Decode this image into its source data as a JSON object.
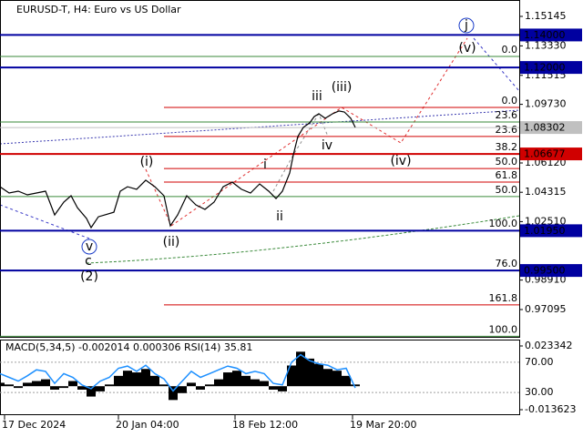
{
  "chart_data": [
    {
      "type": "line",
      "title": "EURUSD-T, H4:  Euro vs US Dollar",
      "x": [
        0,
        10,
        20,
        30,
        40,
        50,
        60,
        70,
        78,
        85,
        95,
        100,
        108,
        115,
        125,
        132,
        140,
        150,
        160,
        170,
        180,
        187,
        195,
        205,
        215,
        225,
        235,
        245,
        255,
        265,
        275,
        285,
        295,
        303,
        310,
        318,
        322,
        327,
        333,
        340,
        345,
        350,
        357,
        365,
        372,
        378,
        385,
        390
      ],
      "series": [
        {
          "color": "#000000",
          "values": [
            1.0466,
            1.0427,
            1.0438,
            1.0416,
            1.0427,
            1.0438,
            1.0292,
            1.0371,
            1.041,
            1.0337,
            1.027,
            1.0214,
            1.0281,
            1.0292,
            1.0309,
            1.0438,
            1.0466,
            1.045,
            1.0506,
            1.0466,
            1.041,
            1.0225,
            1.0292,
            1.041,
            1.0354,
            1.0326,
            1.0371,
            1.0466,
            1.0494,
            1.045,
            1.0427,
            1.0483,
            1.0438,
            1.0393,
            1.0438,
            1.055,
            1.0662,
            1.0775,
            1.0831,
            1.0859,
            1.0898,
            1.0915,
            1.0887,
            1.0915,
            1.0932,
            1.0926,
            1.0887,
            1.0831
          ]
        }
      ],
      "xlim": [
        0,
        570
      ],
      "xticks": [
        {
          "value": 5,
          "label": "17 Dec 2024"
        },
        {
          "value": 130,
          "label": "20 Jan 04:00"
        },
        {
          "value": 258,
          "label": "18 Feb 12:00"
        },
        {
          "value": 387,
          "label": "19 Mar 20:00"
        }
      ],
      "ylim": [
        0.95414,
        1.16154
      ],
      "yticks": [
        1.15145,
        {
          "value": 1.1333,
          "label": "1.13330"
        },
        1.11515,
        {
          "value": 1.0973,
          "label": "1.09730"
        },
        {
          "value": 1.0612,
          "label": "1.06120"
        },
        1.04315,
        {
          "value": 1.0251,
          "label": "1.02510"
        },
        {
          "value": 0.9891,
          "label": "0.98910"
        },
        0.97095
      ],
      "levels": [
        {
          "value": 1.14,
          "label": "1.14000",
          "color": "#0000a0"
        },
        {
          "value": 1.12,
          "label": "1.12000",
          "color": "#0000a0"
        },
        {
          "value": 1.08302,
          "label": "1.08302",
          "color": "#c0c0c0"
        },
        {
          "value": 1.06677,
          "label": "1.06677",
          "color": "#d00000"
        },
        {
          "value": 1.0195,
          "label": "1.01950",
          "color": "#0000a0"
        },
        {
          "value": 0.995,
          "label": "0.99500",
          "color": "#0000a0"
        }
      ],
      "fib_red": {
        "color": "#d00000",
        "levels": [
          {
            "label": "0.0",
            "price": 1.0954
          },
          {
            "label": "23.6",
            "price": 1.0775
          },
          {
            "label": "38.2",
            "price": 1.0668
          },
          {
            "label": "50.0",
            "price": 1.0578
          },
          {
            "label": "61.8",
            "price": 1.0494
          },
          {
            "label": "100.0",
            "price": 1.0197
          },
          {
            "label": "161.8",
            "price": 0.9738
          }
        ]
      },
      "fib_green": {
        "color": "#3a8a3a",
        "levels": [
          {
            "label": "0.0",
            "price": 1.1268
          },
          {
            "label": "23.6",
            "price": 1.0864
          },
          {
            "label": "50.0",
            "price": 1.0405
          },
          {
            "label": "76.0",
            "price": 0.9951
          },
          {
            "label": "100.0",
            "price": 0.9545
          }
        ]
      },
      "wave_labels": [
        {
          "text": "j",
          "color": "#1a3cc8",
          "circled": true
        },
        {
          "text": "(v)",
          "color": "#d00000"
        },
        {
          "text": "iii",
          "color": "#707070"
        },
        {
          "text": "(iii)",
          "color": "#d00000"
        },
        {
          "text": "iv",
          "color": "#707070"
        },
        {
          "text": "(iv)",
          "color": "#d00000"
        },
        {
          "text": "(i)",
          "color": "#d00000"
        },
        {
          "text": "(ii)",
          "color": "#d00000"
        },
        {
          "text": "i",
          "color": "#707070"
        },
        {
          "text": "ii",
          "color": "#707070"
        },
        {
          "text": "v",
          "color": "#1a3cc8",
          "circled": true
        },
        {
          "text": "c",
          "color": "#d00000"
        },
        {
          "text": "(2)",
          "color": "#3a8a3a"
        }
      ]
    },
    {
      "type": "indicator",
      "title": "MACD(5,34,5) -0.002014 0.000306 RSI(14) 35.81",
      "x": [
        0,
        10,
        20,
        30,
        40,
        50,
        60,
        70,
        80,
        90,
        100,
        110,
        120,
        130,
        140,
        150,
        160,
        170,
        180,
        190,
        200,
        210,
        220,
        230,
        240,
        250,
        260,
        270,
        280,
        290,
        300,
        310,
        320,
        330,
        340,
        350,
        360,
        370,
        380,
        390
      ],
      "series": [
        {
          "color": "#000000",
          "values": [
            0.002,
            0.001,
            -0.001,
            0.002,
            0.003,
            0.004,
            -0.002,
            -0.001,
            0.003,
            -0.002,
            -0.006,
            -0.003,
            0.001,
            0.006,
            0.009,
            0.008,
            0.01,
            0.006,
            0.001,
            -0.008,
            -0.004,
            0.002,
            -0.002,
            0.001,
            0.004,
            0.008,
            0.009,
            0.006,
            0.004,
            0.003,
            -0.002,
            -0.003,
            0.012,
            0.02,
            0.016,
            0.013,
            0.01,
            0.009,
            0.006,
            0.001
          ]
        },
        {
          "color": "#1e90ff",
          "axis": "y2",
          "values": [
            55,
            50,
            45,
            52,
            60,
            58,
            42,
            55,
            50,
            40,
            35,
            45,
            50,
            62,
            65,
            58,
            66,
            55,
            48,
            32,
            45,
            58,
            50,
            55,
            60,
            65,
            62,
            55,
            58,
            55,
            42,
            40,
            70,
            80,
            72,
            68,
            66,
            60,
            62,
            36
          ]
        }
      ],
      "ylim": [
        -0.01679,
        0.02704
      ],
      "yticks": [
        0.023342,
        -0.013623
      ],
      "y2lim": [
        0,
        100
      ],
      "y2ticks": [
        {
          "value": 70,
          "label": "70.00"
        },
        {
          "value": 30,
          "label": "30.00"
        }
      ]
    }
  ]
}
